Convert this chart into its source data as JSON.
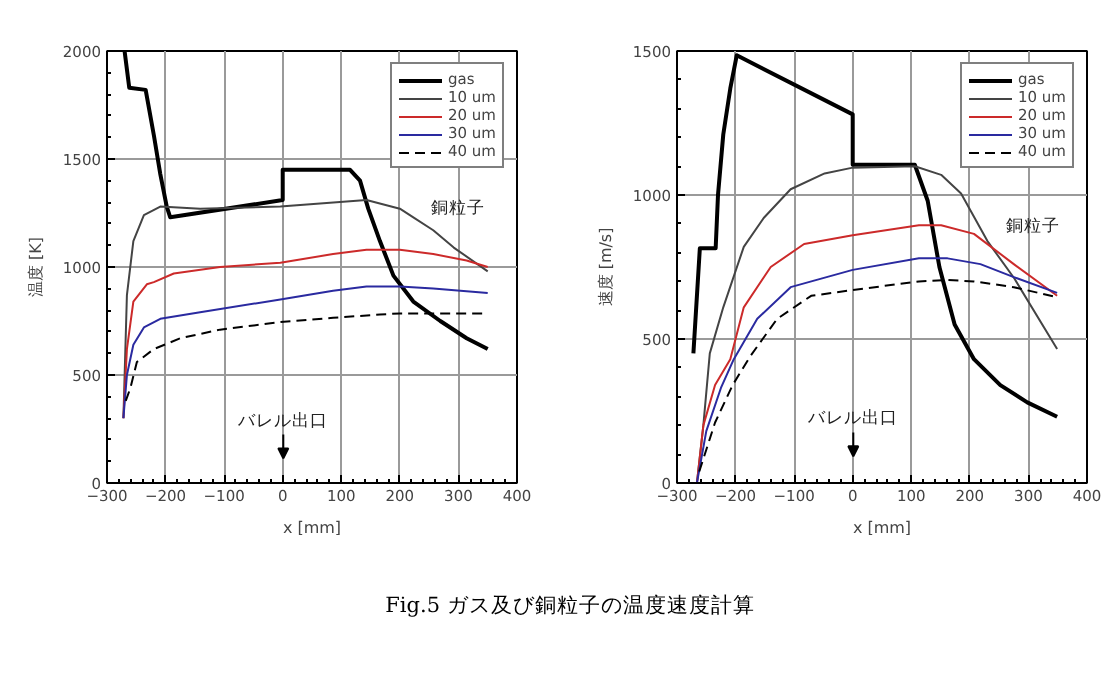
{
  "chart_data": [
    {
      "type": "line",
      "xlabel": "x [mm]",
      "ylabel": "温度 [K]",
      "xlim": [
        -300,
        400
      ],
      "ylim": [
        0,
        2000
      ],
      "xticks": [
        -300,
        -200,
        -100,
        0,
        100,
        200,
        300,
        400
      ],
      "yticks": [
        0,
        500,
        1000,
        1500,
        2000
      ],
      "grid": true,
      "legend": "top right",
      "series": [
        {
          "name": "gas",
          "color": "#000000",
          "line_style": "solid",
          "x": [
            -270,
            -262,
            -234,
            -220,
            -209,
            -198,
            -192,
            0,
            0,
            115,
            132,
            146,
            166,
            189,
            223,
            269,
            314,
            350
          ],
          "values": [
            2000,
            1830,
            1820,
            1610,
            1430,
            1280,
            1230,
            1310,
            1450,
            1450,
            1400,
            1270,
            1120,
            960,
            840,
            750,
            670,
            620
          ]
        },
        {
          "name": "10 um",
          "color": "#444444",
          "line_style": "solid",
          "x": [
            -272,
            -266,
            -255,
            -237,
            -209,
            -141,
            -4,
            143,
            200,
            223,
            257,
            292,
            350
          ],
          "values": [
            300,
            870,
            1120,
            1240,
            1280,
            1270,
            1280,
            1310,
            1270,
            1230,
            1170,
            1090,
            980
          ]
        },
        {
          "name": "20 um",
          "color": "#cc2a2a",
          "line_style": "solid",
          "x": [
            -272,
            -266,
            -255,
            -232,
            -220,
            -186,
            -107,
            -4,
            86,
            143,
            200,
            257,
            314,
            350
          ],
          "values": [
            300,
            620,
            840,
            920,
            930,
            970,
            1000,
            1020,
            1060,
            1080,
            1080,
            1060,
            1030,
            1000
          ]
        },
        {
          "name": "30 um",
          "color": "#2a2aa0",
          "line_style": "solid",
          "x": [
            -272,
            -266,
            -255,
            -237,
            -209,
            -141,
            -4,
            86,
            143,
            200,
            257,
            350
          ],
          "values": [
            300,
            500,
            640,
            720,
            760,
            790,
            850,
            890,
            910,
            910,
            900,
            880
          ]
        },
        {
          "name": "40 um",
          "color": "#000000",
          "line_style": "dashed",
          "x": [
            -268,
            -260,
            -249,
            -220,
            -175,
            -107,
            -4,
            86,
            166,
            200,
            350
          ],
          "values": [
            380,
            440,
            560,
            620,
            670,
            710,
            745,
            765,
            780,
            785,
            785
          ]
        }
      ],
      "annotations": [
        "銅粒子",
        "バレル出口",
        "Fig.5 ガス及び銅粒子の温度速度計算"
      ]
    },
    {
      "type": "line",
      "xlabel": "x [mm]",
      "ylabel": "速度 [m/s]",
      "xlim": [
        -300,
        400
      ],
      "ylim": [
        0,
        1500
      ],
      "xticks": [
        -300,
        -200,
        -100,
        0,
        100,
        200,
        300,
        400
      ],
      "yticks": [
        0,
        500,
        1000,
        1500
      ],
      "grid": true,
      "legend": "top right",
      "series": [
        {
          "name": "gas",
          "color": "#000000",
          "line_style": "solid",
          "x": [
            -272,
            -261,
            -234,
            -230,
            -221,
            -209,
            -198,
            0,
            0,
            106,
            128,
            148,
            174,
            207,
            252,
            298,
            349
          ],
          "values": [
            450,
            815,
            815,
            1000,
            1210,
            1370,
            1485,
            1280,
            1105,
            1105,
            980,
            750,
            550,
            430,
            340,
            280,
            230
          ]
        },
        {
          "name": "10 um",
          "color": "#444444",
          "line_style": "solid",
          "x": [
            -266,
            -255,
            -244,
            -221,
            -186,
            -152,
            -106,
            -48,
            0,
            106,
            151,
            185,
            230,
            276,
            349
          ],
          "values": [
            0,
            200,
            450,
            610,
            820,
            920,
            1020,
            1075,
            1095,
            1100,
            1070,
            1005,
            840,
            710,
            465
          ]
        },
        {
          "name": "20 um",
          "color": "#cc2a2a",
          "line_style": "solid",
          "x": [
            -266,
            -255,
            -235,
            -209,
            -186,
            -140,
            -83,
            0,
            113,
            151,
            207,
            275,
            349
          ],
          "values": [
            0,
            200,
            340,
            430,
            610,
            750,
            830,
            860,
            895,
            895,
            865,
            760,
            650
          ]
        },
        {
          "name": "30 um",
          "color": "#2a2aa0",
          "line_style": "solid",
          "x": [
            -266,
            -250,
            -225,
            -203,
            -163,
            -106,
            0,
            113,
            162,
            218,
            275,
            349
          ],
          "values": [
            0,
            180,
            330,
            430,
            570,
            680,
            740,
            780,
            780,
            760,
            715,
            660
          ]
        },
        {
          "name": "40 um",
          "color": "#000000",
          "line_style": "dashed",
          "x": [
            -262,
            -235,
            -205,
            -175,
            -129,
            -71,
            0,
            113,
            162,
            207,
            275,
            349
          ],
          "values": [
            40,
            210,
            340,
            440,
            570,
            650,
            670,
            700,
            705,
            700,
            680,
            645
          ]
        }
      ],
      "annotations": [
        "銅粒子",
        "バレル出口"
      ]
    }
  ]
}
